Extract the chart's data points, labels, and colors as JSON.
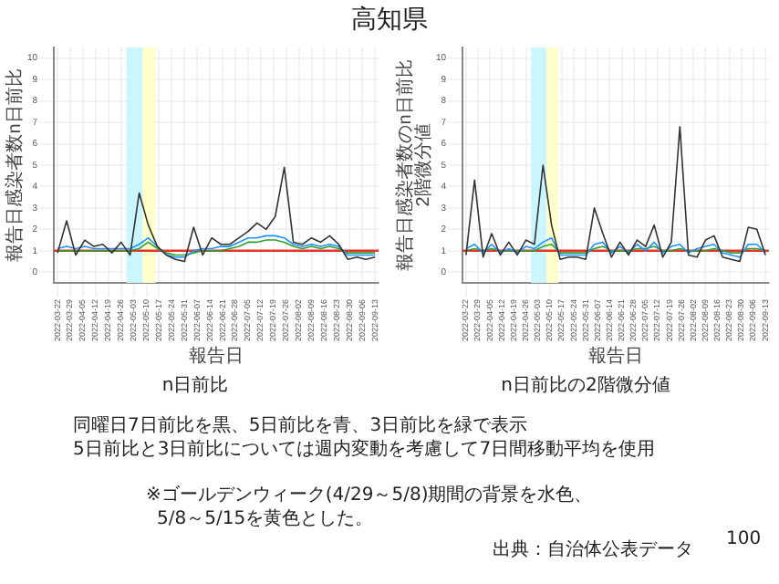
{
  "chart_data": [
    {
      "type": "line",
      "title": "n日前比",
      "xlabel": "報告日",
      "ylabel": "報告日感染者数n日前比",
      "x": [
        "2022-03-22",
        "2022-03-27",
        "2022-04-01",
        "2022-04-06",
        "2022-04-11",
        "2022-04-16",
        "2022-04-21",
        "2022-04-26",
        "2022-05-01",
        "2022-05-06",
        "2022-05-11",
        "2022-05-16",
        "2022-05-21",
        "2022-05-26",
        "2022-05-31",
        "2022-06-05",
        "2022-06-10",
        "2022-06-15",
        "2022-06-20",
        "2022-06-25",
        "2022-06-30",
        "2022-07-05",
        "2022-07-10",
        "2022-07-15",
        "2022-07-20",
        "2022-07-25",
        "2022-07-30",
        "2022-08-04",
        "2022-08-09",
        "2022-08-14",
        "2022-08-19",
        "2022-08-24",
        "2022-08-29",
        "2022-09-03",
        "2022-09-08",
        "2022-09-13"
      ],
      "series": [
        {
          "color": "#333333",
          "values": [
            0.9,
            2.4,
            0.8,
            1.5,
            1.2,
            1.3,
            0.9,
            1.4,
            0.8,
            3.7,
            2.2,
            1.2,
            0.8,
            0.6,
            0.5,
            2.1,
            0.8,
            1.6,
            1.3,
            1.3,
            1.6,
            1.9,
            2.3,
            2.0,
            2.6,
            4.9,
            1.4,
            1.3,
            1.6,
            1.4,
            1.7,
            1.3,
            0.6,
            0.7,
            0.6,
            0.7
          ]
        },
        {
          "color": "#1e90ff",
          "values": [
            1.1,
            1.2,
            1.1,
            1.2,
            1.1,
            1.1,
            1.1,
            1.1,
            1.1,
            1.3,
            1.6,
            1.2,
            0.8,
            0.7,
            0.7,
            1.0,
            1.1,
            1.1,
            1.2,
            1.2,
            1.4,
            1.6,
            1.6,
            1.7,
            1.7,
            1.6,
            1.3,
            1.2,
            1.3,
            1.2,
            1.3,
            1.2,
            0.8,
            0.8,
            0.8,
            0.8
          ]
        },
        {
          "color": "#2ca02c",
          "values": [
            1.0,
            1.0,
            1.0,
            1.0,
            1.0,
            1.0,
            1.0,
            1.0,
            1.0,
            1.1,
            1.4,
            1.1,
            0.9,
            0.8,
            0.8,
            0.9,
            1.0,
            1.0,
            1.0,
            1.1,
            1.2,
            1.4,
            1.4,
            1.5,
            1.5,
            1.4,
            1.2,
            1.1,
            1.2,
            1.1,
            1.2,
            1.1,
            0.9,
            0.9,
            0.9,
            0.9
          ]
        }
      ],
      "xlim": [
        "2022-03-20",
        "2022-09-15"
      ],
      "xticks": [
        "2022-03-22",
        "2022-03-29",
        "2022-04-05",
        "2022-04-12",
        "2022-04-19",
        "2022-04-26",
        "2022-05-03",
        "2022-05-10",
        "2022-05-17",
        "2022-05-24",
        "2022-05-31",
        "2022-06-07",
        "2022-06-14",
        "2022-06-21",
        "2022-06-28",
        "2022-07-05",
        "2022-07-12",
        "2022-07-19",
        "2022-07-26",
        "2022-08-02",
        "2022-08-09",
        "2022-08-16",
        "2022-08-23",
        "2022-08-30",
        "2022-09-06",
        "2022-09-13"
      ],
      "ylim": [
        -0.5,
        10.5
      ],
      "yticks": [
        0,
        1,
        2,
        3,
        4,
        5,
        6,
        7,
        8,
        9,
        10
      ],
      "ref_lines": [
        {
          "axis": "y",
          "value": 1,
          "color": "#e8332a"
        }
      ],
      "bands": [
        {
          "axis": "x",
          "from": "2022-04-29",
          "to": "2022-05-08",
          "color": "#ccf6ff"
        },
        {
          "axis": "x",
          "from": "2022-05-08",
          "to": "2022-05-15",
          "color": "#ffffcc"
        }
      ],
      "grid": true,
      "legend": false,
      "marker": "none",
      "line_style": "solid"
    },
    {
      "type": "line",
      "title": "n日前比の2階微分値",
      "xlabel": "報告日",
      "ylabel": "報告日感染者数のn日前比\n2階微分値",
      "x": [
        "2022-03-22",
        "2022-03-27",
        "2022-04-01",
        "2022-04-06",
        "2022-04-11",
        "2022-04-16",
        "2022-04-21",
        "2022-04-26",
        "2022-05-01",
        "2022-05-06",
        "2022-05-11",
        "2022-05-16",
        "2022-05-21",
        "2022-05-26",
        "2022-05-31",
        "2022-06-05",
        "2022-06-10",
        "2022-06-15",
        "2022-06-20",
        "2022-06-25",
        "2022-06-30",
        "2022-07-05",
        "2022-07-10",
        "2022-07-15",
        "2022-07-20",
        "2022-07-25",
        "2022-07-30",
        "2022-08-04",
        "2022-08-09",
        "2022-08-14",
        "2022-08-19",
        "2022-08-24",
        "2022-08-29",
        "2022-09-03",
        "2022-09-08",
        "2022-09-13"
      ],
      "series": [
        {
          "color": "#333333",
          "values": [
            0.8,
            4.3,
            0.7,
            1.8,
            0.8,
            1.4,
            0.8,
            1.5,
            1.3,
            5.0,
            2.2,
            0.6,
            0.7,
            0.7,
            0.6,
            3.0,
            1.8,
            0.7,
            1.4,
            0.8,
            1.5,
            1.2,
            2.2,
            0.7,
            1.4,
            6.8,
            0.8,
            0.7,
            1.5,
            1.7,
            0.7,
            0.6,
            0.5,
            2.1,
            2.0,
            0.8
          ]
        },
        {
          "color": "#1e90ff",
          "values": [
            1.1,
            1.3,
            0.9,
            1.3,
            0.9,
            1.1,
            0.9,
            1.2,
            1.1,
            1.4,
            1.6,
            0.8,
            0.8,
            0.8,
            0.8,
            1.3,
            1.4,
            0.9,
            1.2,
            0.9,
            1.3,
            1.0,
            1.4,
            0.9,
            1.2,
            1.3,
            0.9,
            1.1,
            1.2,
            1.3,
            0.9,
            0.8,
            0.7,
            1.3,
            1.3,
            0.9
          ]
        },
        {
          "color": "#2ca02c",
          "values": [
            1.0,
            1.1,
            1.0,
            1.1,
            1.0,
            1.0,
            1.0,
            1.0,
            1.0,
            1.2,
            1.3,
            0.9,
            0.9,
            0.9,
            0.9,
            1.1,
            1.2,
            1.0,
            1.0,
            1.0,
            1.1,
            1.1,
            1.2,
            1.0,
            1.0,
            1.1,
            1.0,
            1.0,
            1.0,
            1.1,
            1.0,
            0.9,
            0.9,
            1.1,
            1.1,
            1.0
          ]
        }
      ],
      "xlim": [
        "2022-03-20",
        "2022-09-15"
      ],
      "xticks": [
        "2022-03-22",
        "2022-03-29",
        "2022-04-05",
        "2022-04-12",
        "2022-04-19",
        "2022-04-26",
        "2022-05-03",
        "2022-05-10",
        "2022-05-17",
        "2022-05-24",
        "2022-05-31",
        "2022-06-07",
        "2022-06-14",
        "2022-06-21",
        "2022-06-28",
        "2022-07-05",
        "2022-07-12",
        "2022-07-19",
        "2022-07-26",
        "2022-08-02",
        "2022-08-09",
        "2022-08-16",
        "2022-08-23",
        "2022-08-30",
        "2022-09-06",
        "2022-09-13"
      ],
      "ylim": [
        -0.5,
        10.5
      ],
      "yticks": [
        0,
        1,
        2,
        3,
        4,
        5,
        6,
        7,
        8,
        9,
        10
      ],
      "ref_lines": [
        {
          "axis": "y",
          "value": 1,
          "color": "#e8332a"
        }
      ],
      "bands": [
        {
          "axis": "x",
          "from": "2022-04-29",
          "to": "2022-05-08",
          "color": "#ccf6ff"
        },
        {
          "axis": "x",
          "from": "2022-05-08",
          "to": "2022-05-15",
          "color": "#ffffcc"
        }
      ],
      "grid": true,
      "legend": false,
      "marker": "none",
      "line_style": "solid"
    },
    {
      "type": "other",
      "title": "高知県",
      "annotations": [
        "同曜日7日前比を黒、5日前比を青、3日前比を緑で表示",
        "5日前比と3日前比については週内変動を考慮して7日間移動平均を使用",
        "※ゴールデンウィーク(4/29～5/8)期間の背景を水色、",
        "5/8～5/15を黄色とした。",
        "出典：自治体公表データ",
        "100"
      ]
    }
  ]
}
